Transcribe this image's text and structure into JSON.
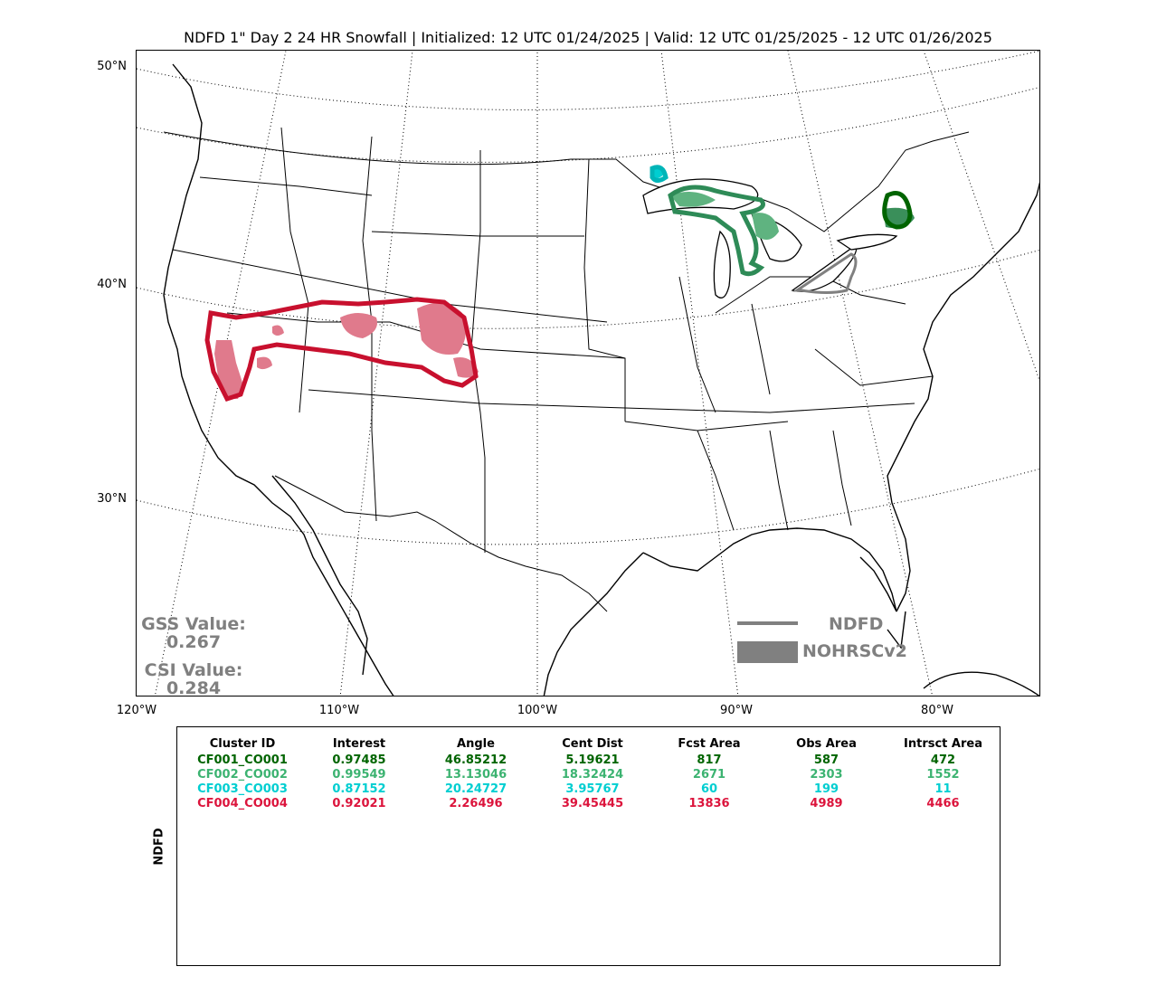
{
  "title": "NDFD 1\" Day 2 24 HR Snowfall | Initialized: 12 UTC 01/24/2025 | Valid: 12 UTC 01/25/2025 - 12 UTC 01/26/2025",
  "map": {
    "lat_labels": [
      "50°N",
      "40°N",
      "30°N"
    ],
    "lon_labels": [
      "120°W",
      "110°W",
      "100°W",
      "90°W",
      "80°W"
    ]
  },
  "scores": {
    "gss_label": "GSS Value:",
    "gss_value": "0.267",
    "csi_label": "CSI Value:",
    "csi_value": "0.284"
  },
  "legend": {
    "forecast_label": "NDFD",
    "observed_label": "NOHRSCv2",
    "color": "#808080"
  },
  "stats_panel": {
    "ylabel": "NDFD",
    "columns": [
      "Cluster ID",
      "Interest",
      "Angle",
      "Cent Dist",
      "Fcst Area",
      "Obs Area",
      "Intrsct Area"
    ],
    "rows": [
      {
        "color": "#006400",
        "cells": [
          "CF001_CO001",
          "0.97485",
          "46.85212",
          "5.19621",
          "817",
          "587",
          "472"
        ]
      },
      {
        "color": "#3cb371",
        "cells": [
          "CF002_CO002",
          "0.99549",
          "13.13046",
          "18.32424",
          "2671",
          "2303",
          "1552"
        ]
      },
      {
        "color": "#00ced1",
        "cells": [
          "CF003_CO003",
          "0.87152",
          "20.24727",
          "3.95767",
          "60",
          "199",
          "11"
        ]
      },
      {
        "color": "#dc143c",
        "cells": [
          "CF004_CO004",
          "0.92021",
          "2.26496",
          "39.45445",
          "13836",
          "4989",
          "4466"
        ]
      }
    ]
  }
}
